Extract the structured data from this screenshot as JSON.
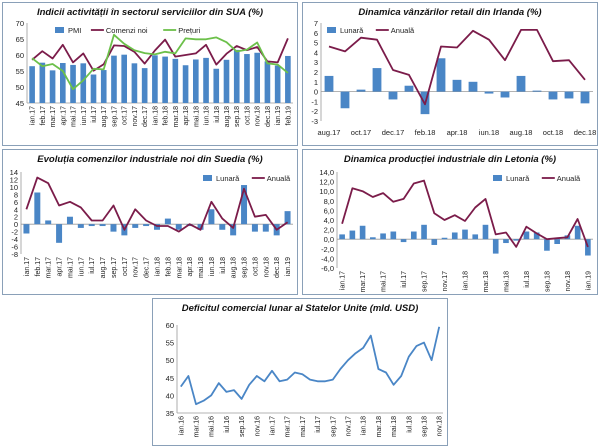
{
  "chart_data": [
    {
      "id": "pmi_sua",
      "type": "bar+line",
      "title": "Indicii activității în sectorul serviciilor din SUA (%)",
      "categories": [
        "ian.17",
        "feb.17",
        "mar.17",
        "apr.17",
        "mai.17",
        "iun.17",
        "iul.17",
        "aug.17",
        "sep.17",
        "oct.17",
        "nov.17",
        "dec.17",
        "ian.18",
        "feb.18",
        "mar.18",
        "apr.18",
        "mai.18",
        "iun.18",
        "iul.18",
        "aug.18",
        "sep.18",
        "oct.18",
        "nov.18",
        "dec.18",
        "ian.19",
        "feb.19"
      ],
      "series": [
        {
          "name": "PMI",
          "kind": "bar",
          "color": "#4a86c6",
          "values": [
            56.5,
            57.6,
            55.2,
            57.5,
            56.9,
            57.4,
            53.9,
            55.3,
            59.8,
            60.1,
            57.4,
            55.9,
            59.9,
            59.5,
            58.8,
            56.8,
            58.6,
            59.1,
            55.7,
            58.5,
            61.6,
            60.3,
            60.7,
            58.0,
            56.7,
            59.7
          ]
        },
        {
          "name": "Comenzi noi",
          "kind": "line",
          "color": "#7b1c4a",
          "values": [
            58.5,
            61.2,
            58.9,
            63.2,
            57.7,
            60.5,
            55.1,
            57.1,
            63.0,
            62.8,
            61.0,
            57.3,
            61.4,
            64.8,
            59.5,
            60.0,
            60.5,
            63.2,
            57.0,
            60.4,
            62.8,
            61.5,
            62.5,
            58.0,
            57.7,
            65.2
          ]
        },
        {
          "name": "Prețuri",
          "kind": "line",
          "color": "#6cc04a",
          "values": [
            59.0,
            56.5,
            57.2,
            55.0,
            49.3,
            52.1,
            55.7,
            55.5,
            66.3,
            63.5,
            61.5,
            60.6,
            60.2,
            61.0,
            60.5,
            65.2,
            64.9,
            64.9,
            65.5,
            64.0,
            61.1,
            61.7,
            63.9,
            57.4,
            57.0,
            54.4
          ]
        }
      ],
      "ylim": [
        45,
        70
      ],
      "yticks": [
        45,
        50,
        55,
        60,
        65,
        70
      ],
      "legend": [
        "PMI",
        "Comenzi noi",
        "Prețuri"
      ]
    },
    {
      "id": "retail_irlanda",
      "type": "bar+line",
      "title": "Dinamica vânzărilor retail din Irlanda (%)",
      "categories": [
        "aug.17",
        "sep.17",
        "oct.17",
        "nov.17",
        "dec.17",
        "ian.18",
        "feb.18",
        "mar.18",
        "apr.18",
        "mai.18",
        "iun.18",
        "iul.18",
        "aug.18",
        "sep.18",
        "oct.18",
        "nov.18",
        "dec.18"
      ],
      "tick_labels": [
        "aug.17",
        "",
        "oct.17",
        "",
        "dec.17",
        "",
        "feb.18",
        "",
        "apr.18",
        "",
        "iun.18",
        "",
        "aug.18",
        "",
        "oct.18",
        "",
        "dec.18"
      ],
      "series": [
        {
          "name": "Lunară",
          "kind": "bar",
          "color": "#4a86c6",
          "values": [
            1.6,
            -1.7,
            0.2,
            2.4,
            -0.8,
            0.6,
            -2.3,
            3.4,
            1.2,
            1.0,
            -0.2,
            -0.6,
            1.6,
            0.1,
            -0.8,
            -0.7,
            -1.2
          ]
        },
        {
          "name": "Anuală",
          "kind": "line",
          "color": "#7b1c4a",
          "values": [
            4.6,
            4.1,
            5.5,
            5.3,
            2.2,
            1.7,
            -1.3,
            4.6,
            4.5,
            6.2,
            5.3,
            3.2,
            6.3,
            6.3,
            3.1,
            3.2,
            1.2
          ]
        }
      ],
      "ylim": [
        -3,
        7
      ],
      "yticks": [
        -3,
        -2,
        -1,
        0,
        1,
        2,
        3,
        4,
        5,
        6,
        7
      ],
      "legend": [
        "Lunară",
        "Anuală"
      ]
    },
    {
      "id": "comenzi_suedia",
      "type": "bar+line",
      "title": "Evoluția comenzilor industriale noi din Suedia (%)",
      "categories": [
        "ian.17",
        "feb.17",
        "mar.17",
        "apr.17",
        "mai.17",
        "iun.17",
        "iul.17",
        "aug.17",
        "sep.17",
        "oct.17",
        "nov.17",
        "dec.17",
        "ian.18",
        "feb.18",
        "mar.18",
        "apr.18",
        "mai.18",
        "iun.18",
        "iul.18",
        "aug.18",
        "sep.18",
        "oct.18",
        "nov.18",
        "dec.18",
        "ian.19"
      ],
      "series": [
        {
          "name": "Lunară",
          "kind": "bar",
          "color": "#4a86c6",
          "values": [
            -2.5,
            8.5,
            1.0,
            -5.0,
            2.0,
            -1.0,
            -0.5,
            -0.5,
            -2.0,
            -3.0,
            -1.0,
            -0.5,
            -1.5,
            1.5,
            -1.5,
            -0.5,
            -1.5,
            4.0,
            -1.5,
            -3.0,
            10.5,
            -2.0,
            -2.0,
            -3.0,
            3.5
          ]
        },
        {
          "name": "Anuală",
          "kind": "line",
          "color": "#7b1c4a",
          "values": [
            4.0,
            12.5,
            11.0,
            5.0,
            6.0,
            4.5,
            1.0,
            1.0,
            5.0,
            -1.5,
            4.0,
            1.0,
            -0.5,
            -0.5,
            -2.0,
            0.0,
            -1.5,
            6.0,
            1.5,
            -1.0,
            9.5,
            2.0,
            2.5,
            -1.5,
            0.5
          ]
        }
      ],
      "ylim": [
        -8,
        14
      ],
      "yticks": [
        -8,
        -6,
        -4,
        -2,
        0,
        2,
        4,
        6,
        8,
        10,
        12,
        14
      ],
      "legend": [
        "Lunară",
        "Anuală"
      ]
    },
    {
      "id": "productie_letonia",
      "type": "bar+line",
      "title": "Dinamica producției industriale din Letonia (%)",
      "categories": [
        "ian.17",
        "feb.17",
        "mar.17",
        "apr.17",
        "mai.17",
        "iun.17",
        "iul.17",
        "aug.17",
        "sep.17",
        "oct.17",
        "nov.17",
        "dec.17",
        "ian.18",
        "feb.18",
        "mar.18",
        "apr.18",
        "mai.18",
        "iun.18",
        "iul.18",
        "aug.18",
        "sep.18",
        "oct.18",
        "nov.18",
        "dec.18",
        "ian.19"
      ],
      "tick_labels": [
        "ian.17",
        "",
        "mar.17",
        "",
        "mai.17",
        "",
        "iul.17",
        "",
        "sep.17",
        "",
        "nov.17",
        "",
        "ian.18",
        "",
        "mar.18",
        "",
        "mai.18",
        "",
        "iul.18",
        "",
        "sep.18",
        "",
        "nov.18",
        "",
        "ian.19"
      ],
      "series": [
        {
          "name": "Lunară",
          "kind": "bar",
          "color": "#4a86c6",
          "values": [
            1.0,
            1.8,
            2.8,
            0.4,
            1.2,
            1.6,
            -0.6,
            1.6,
            3.0,
            -1.2,
            0.3,
            1.4,
            2.0,
            1.0,
            3.0,
            -3.0,
            -0.8,
            -0.3,
            1.6,
            1.4,
            -2.4,
            -1.0,
            0.8,
            2.8,
            -3.4
          ]
        },
        {
          "name": "Anuală",
          "kind": "line",
          "color": "#7b1c4a",
          "values": [
            3.2,
            10.6,
            10.0,
            8.8,
            9.6,
            7.8,
            8.4,
            11.6,
            12.2,
            5.4,
            4.0,
            5.0,
            3.8,
            6.6,
            8.4,
            1.0,
            1.4,
            -1.6,
            2.6,
            1.2,
            0.0,
            0.2,
            0.4,
            4.2,
            -1.6
          ]
        }
      ],
      "ylim": [
        -6,
        14
      ],
      "yticks": [
        -6,
        -4,
        -2,
        0,
        2,
        4,
        6,
        8,
        10,
        12,
        14
      ],
      "ytick_labels": [
        "-6,0",
        "-4,0",
        "-2,0",
        "0,0",
        "2,0",
        "4,0",
        "6,0",
        "8,0",
        "10,0",
        "12,0",
        "14,0"
      ],
      "legend": [
        "Lunară",
        "Anuală"
      ]
    },
    {
      "id": "deficit_sua",
      "type": "line",
      "title": "Deficitul comercial lunar al Statelor Unite (mld. USD)",
      "categories": [
        "ian.16",
        "feb.16",
        "mar.16",
        "apr.16",
        "mai.16",
        "iun.16",
        "iul.16",
        "aug.16",
        "sep.16",
        "oct.16",
        "nov.16",
        "dec.16",
        "ian.17",
        "feb.17",
        "mar.17",
        "apr.17",
        "mai.17",
        "iun.17",
        "iul.17",
        "aug.17",
        "sep.17",
        "oct.17",
        "nov.17",
        "dec.17",
        "ian.18",
        "feb.18",
        "mar.18",
        "apr.18",
        "mai.18",
        "iun.18",
        "iul.18",
        "aug.18",
        "sep.18",
        "oct.18",
        "nov.18"
      ],
      "tick_labels": [
        "ian.16",
        "",
        "mar.16",
        "",
        "mai.16",
        "",
        "iul.16",
        "",
        "sep.16",
        "",
        "nov.16",
        "",
        "ian.17",
        "",
        "mar.17",
        "",
        "mai.17",
        "",
        "iul.17",
        "",
        "sep.17",
        "",
        "nov.17",
        "",
        "ian.18",
        "",
        "mar.18",
        "",
        "mai.18",
        "",
        "iul.18",
        "",
        "sep.18",
        "",
        "nov.18"
      ],
      "series": [
        {
          "name": "Deficit",
          "kind": "line",
          "color": "#4a86c6",
          "values": [
            42.5,
            45.5,
            37.5,
            38.5,
            40.0,
            43.5,
            41.0,
            41.5,
            39.0,
            43.0,
            45.5,
            44.0,
            47.0,
            44.0,
            44.5,
            46.5,
            46.0,
            44.5,
            44.0,
            44.0,
            44.5,
            47.5,
            50.0,
            52.0,
            53.5,
            57.0,
            47.5,
            46.5,
            43.0,
            45.5,
            51.0,
            54.0,
            55.0,
            50.0,
            59.5
          ]
        }
      ],
      "ylim": [
        35,
        60
      ],
      "yticks": [
        35,
        40,
        45,
        50,
        55,
        60
      ]
    }
  ]
}
